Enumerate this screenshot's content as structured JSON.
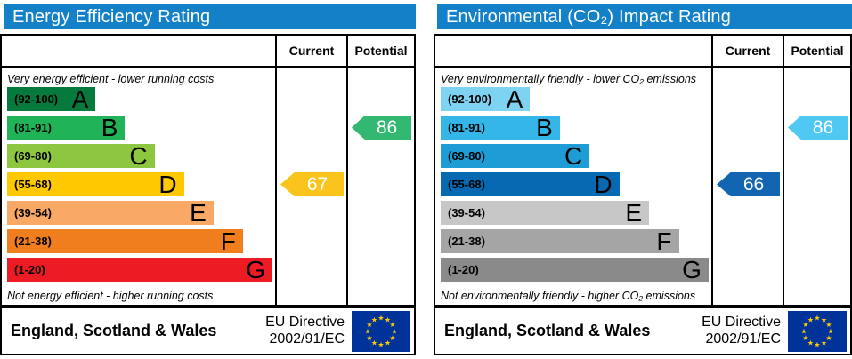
{
  "colors": {
    "header_bg": "#1480c8",
    "header_text": "#ffffff",
    "border": "#000000"
  },
  "eu_flag": {
    "background": "#003399",
    "star_color": "#ffcc00",
    "star": "★",
    "star_count": 12
  },
  "chart_data": [
    {
      "type": "bar",
      "title": "Energy Efficiency Rating",
      "columns": [
        "Current",
        "Potential"
      ],
      "top_caption": "Very energy efficient - lower running costs",
      "bottom_caption": "Not energy efficient - higher running costs",
      "scale": [
        1,
        100
      ],
      "bands": [
        {
          "letter": "A",
          "range": "(92-100)",
          "min": 92,
          "max": 100,
          "color": "#067a3c",
          "width_pct": 33
        },
        {
          "letter": "B",
          "range": "(81-91)",
          "min": 81,
          "max": 91,
          "color": "#21b358",
          "width_pct": 44
        },
        {
          "letter": "C",
          "range": "(69-80)",
          "min": 69,
          "max": 80,
          "color": "#8dc63f",
          "width_pct": 55
        },
        {
          "letter": "D",
          "range": "(55-68)",
          "min": 55,
          "max": 68,
          "color": "#ffc800",
          "width_pct": 66
        },
        {
          "letter": "E",
          "range": "(39-54)",
          "min": 39,
          "max": 54,
          "color": "#f9a865",
          "width_pct": 77
        },
        {
          "letter": "F",
          "range": "(21-38)",
          "min": 21,
          "max": 38,
          "color": "#f07d1e",
          "width_pct": 88
        },
        {
          "letter": "G",
          "range": "(1-20)",
          "min": 1,
          "max": 20,
          "color": "#ed1c24",
          "width_pct": 99
        }
      ],
      "current": {
        "value": 67,
        "band": "D",
        "color": "#fac41c"
      },
      "potential": {
        "value": 86,
        "band": "B",
        "color": "#33b871"
      },
      "footer": {
        "region": "England, Scotland & Wales",
        "directive": [
          "EU Directive",
          "2002/91/EC"
        ]
      }
    },
    {
      "type": "bar",
      "title": "Environmental (CO₂) Impact Rating",
      "columns": [
        "Current",
        "Potential"
      ],
      "top_caption": "Very environmentally friendly - lower CO₂ emissions",
      "bottom_caption": "Not environmentally friendly - higher CO₂ emissions",
      "scale": [
        1,
        100
      ],
      "bands": [
        {
          "letter": "A",
          "range": "(92-100)",
          "min": 92,
          "max": 100,
          "color": "#7ed3f2",
          "width_pct": 33
        },
        {
          "letter": "B",
          "range": "(81-91)",
          "min": 81,
          "max": 91,
          "color": "#35b6e9",
          "width_pct": 44
        },
        {
          "letter": "C",
          "range": "(69-80)",
          "min": 69,
          "max": 80,
          "color": "#1e9cd6",
          "width_pct": 55
        },
        {
          "letter": "D",
          "range": "(55-68)",
          "min": 55,
          "max": 68,
          "color": "#0669b2",
          "width_pct": 66
        },
        {
          "letter": "E",
          "range": "(39-54)",
          "min": 39,
          "max": 54,
          "color": "#c7c7c7",
          "width_pct": 77
        },
        {
          "letter": "F",
          "range": "(21-38)",
          "min": 21,
          "max": 38,
          "color": "#a5a5a5",
          "width_pct": 88
        },
        {
          "letter": "G",
          "range": "(1-20)",
          "min": 1,
          "max": 20,
          "color": "#8a8a8a",
          "width_pct": 99
        }
      ],
      "current": {
        "value": 66,
        "band": "D",
        "color": "#1266b1"
      },
      "potential": {
        "value": 86,
        "band": "B",
        "color": "#4fc8f3"
      },
      "footer": {
        "region": "England, Scotland & Wales",
        "directive": [
          "EU Directive",
          "2002/91/EC"
        ]
      }
    }
  ]
}
